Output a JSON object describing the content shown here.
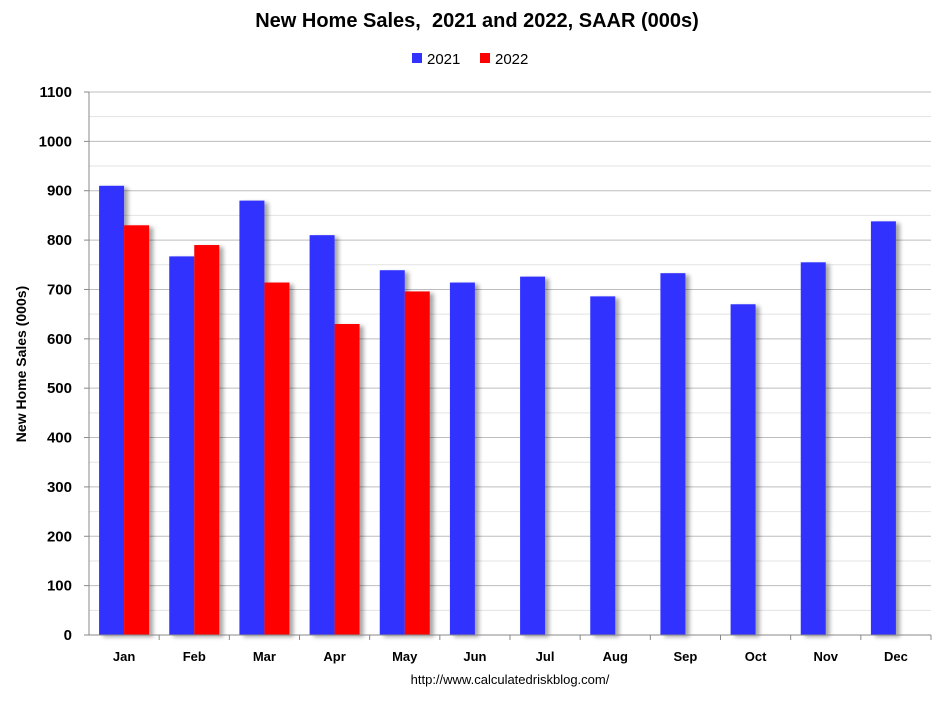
{
  "chart_data": {
    "type": "bar",
    "title": "New Home Sales,  2021 and 2022, SAAR (000s)",
    "ylabel": "New Home Sales (000s)",
    "xlabel": "",
    "categories": [
      "Jan",
      "Feb",
      "Mar",
      "Apr",
      "May",
      "Jun",
      "Jul",
      "Aug",
      "Sep",
      "Oct",
      "Nov",
      "Dec"
    ],
    "series": [
      {
        "name": "2021",
        "color": "#3333FF",
        "values": [
          910,
          767,
          880,
          810,
          739,
          714,
          726,
          686,
          733,
          670,
          755,
          838
        ]
      },
      {
        "name": "2022",
        "color": "#FF0000",
        "values": [
          830,
          790,
          714,
          630,
          696,
          null,
          null,
          null,
          null,
          null,
          null,
          null
        ]
      }
    ],
    "ylim": [
      0,
      1100
    ],
    "yticks": [
      0,
      100,
      200,
      300,
      400,
      500,
      600,
      700,
      800,
      900,
      1000,
      1100
    ],
    "grid": true,
    "legend_position": "top-center"
  },
  "source": "http://www.calculatedriskblog.com/"
}
